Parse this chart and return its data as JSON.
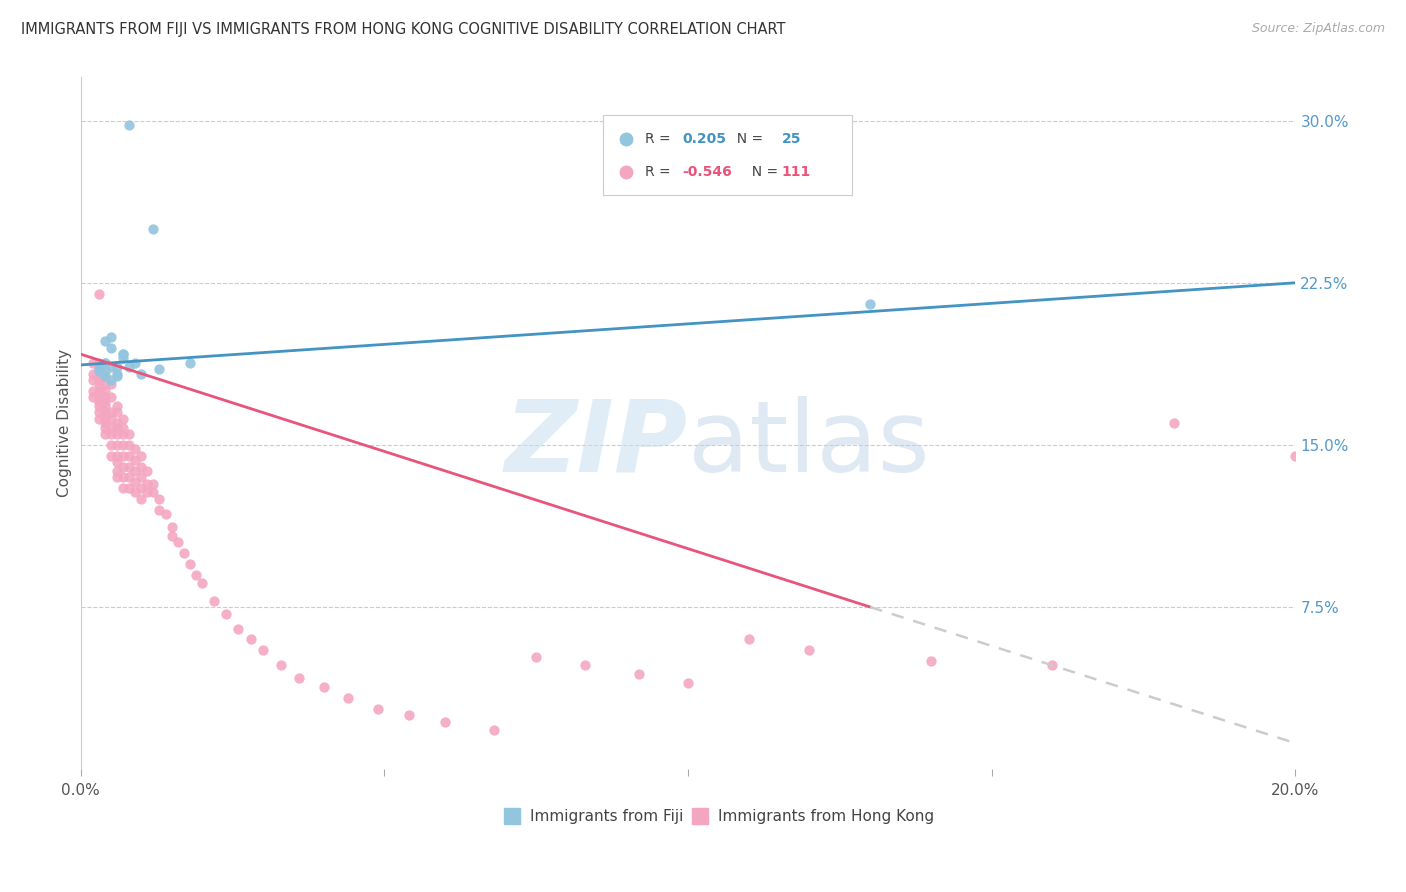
{
  "title": "IMMIGRANTS FROM FIJI VS IMMIGRANTS FROM HONG KONG COGNITIVE DISABILITY CORRELATION CHART",
  "source": "Source: ZipAtlas.com",
  "ylabel": "Cognitive Disability",
  "xlim": [
    0.0,
    0.2
  ],
  "ylim": [
    0.0,
    0.32
  ],
  "ytick_labels_right": [
    "30.0%",
    "22.5%",
    "15.0%",
    "7.5%"
  ],
  "ytick_values_right": [
    0.3,
    0.225,
    0.15,
    0.075
  ],
  "legend_fiji_R": "0.205",
  "legend_fiji_N": "25",
  "legend_hk_R": "-0.546",
  "legend_hk_N": "111",
  "fiji_color": "#92c5de",
  "hk_color": "#f4a6c0",
  "fiji_line_color": "#4393c3",
  "hk_line_color": "#e8547a",
  "hk_dash_color": "#cccccc",
  "watermark_zip": "ZIP",
  "watermark_atlas": "atlas",
  "fiji_x": [
    0.008,
    0.012,
    0.005,
    0.005,
    0.004,
    0.003,
    0.004,
    0.004,
    0.005,
    0.006,
    0.007,
    0.006,
    0.005,
    0.004,
    0.007,
    0.009,
    0.006,
    0.007,
    0.008,
    0.01,
    0.013,
    0.018,
    0.004,
    0.13,
    0.003
  ],
  "fiji_y": [
    0.298,
    0.25,
    0.195,
    0.2,
    0.198,
    0.185,
    0.188,
    0.182,
    0.186,
    0.183,
    0.19,
    0.182,
    0.18,
    0.184,
    0.192,
    0.188,
    0.186,
    0.192,
    0.186,
    0.183,
    0.185,
    0.188,
    0.188,
    0.215,
    0.184
  ],
  "hk_x": [
    0.002,
    0.002,
    0.002,
    0.002,
    0.002,
    0.003,
    0.003,
    0.003,
    0.003,
    0.003,
    0.003,
    0.003,
    0.003,
    0.003,
    0.003,
    0.003,
    0.003,
    0.003,
    0.004,
    0.004,
    0.004,
    0.004,
    0.004,
    0.004,
    0.004,
    0.004,
    0.004,
    0.004,
    0.004,
    0.004,
    0.005,
    0.005,
    0.005,
    0.005,
    0.005,
    0.005,
    0.005,
    0.005,
    0.006,
    0.006,
    0.006,
    0.006,
    0.006,
    0.006,
    0.006,
    0.006,
    0.006,
    0.006,
    0.007,
    0.007,
    0.007,
    0.007,
    0.007,
    0.007,
    0.007,
    0.007,
    0.008,
    0.008,
    0.008,
    0.008,
    0.008,
    0.008,
    0.009,
    0.009,
    0.009,
    0.009,
    0.009,
    0.01,
    0.01,
    0.01,
    0.01,
    0.01,
    0.011,
    0.011,
    0.011,
    0.012,
    0.012,
    0.013,
    0.013,
    0.014,
    0.015,
    0.015,
    0.016,
    0.017,
    0.018,
    0.019,
    0.02,
    0.022,
    0.024,
    0.026,
    0.028,
    0.03,
    0.033,
    0.036,
    0.04,
    0.044,
    0.049,
    0.054,
    0.06,
    0.068,
    0.075,
    0.083,
    0.092,
    0.1,
    0.11,
    0.12,
    0.14,
    0.16,
    0.18,
    0.2,
    0.003
  ],
  "hk_y": [
    0.188,
    0.183,
    0.18,
    0.175,
    0.172,
    0.188,
    0.185,
    0.18,
    0.178,
    0.175,
    0.172,
    0.17,
    0.168,
    0.165,
    0.162,
    0.175,
    0.18,
    0.185,
    0.182,
    0.178,
    0.172,
    0.168,
    0.165,
    0.162,
    0.158,
    0.175,
    0.17,
    0.165,
    0.16,
    0.155,
    0.178,
    0.172,
    0.165,
    0.162,
    0.158,
    0.155,
    0.15,
    0.145,
    0.168,
    0.165,
    0.16,
    0.158,
    0.155,
    0.15,
    0.145,
    0.142,
    0.138,
    0.135,
    0.162,
    0.158,
    0.155,
    0.15,
    0.145,
    0.14,
    0.135,
    0.13,
    0.155,
    0.15,
    0.145,
    0.14,
    0.135,
    0.13,
    0.148,
    0.143,
    0.138,
    0.133,
    0.128,
    0.145,
    0.14,
    0.135,
    0.13,
    0.125,
    0.138,
    0.132,
    0.128,
    0.132,
    0.128,
    0.125,
    0.12,
    0.118,
    0.112,
    0.108,
    0.105,
    0.1,
    0.095,
    0.09,
    0.086,
    0.078,
    0.072,
    0.065,
    0.06,
    0.055,
    0.048,
    0.042,
    0.038,
    0.033,
    0.028,
    0.025,
    0.022,
    0.018,
    0.052,
    0.048,
    0.044,
    0.04,
    0.06,
    0.055,
    0.05,
    0.048,
    0.16,
    0.145,
    0.22
  ]
}
